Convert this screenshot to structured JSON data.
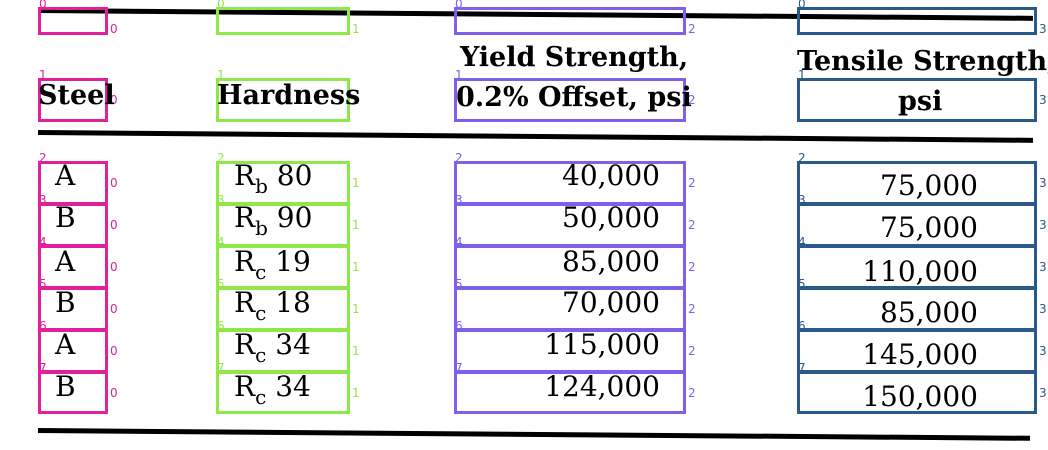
{
  "table": {
    "headers": {
      "steel": "Steel",
      "hardness": "Hardness",
      "yield_line1": "Yield Strength,",
      "yield_line2": "0.2% Offset, psi",
      "tensile_line1": "Tensile Strength,",
      "tensile_line2": "psi"
    },
    "rows": [
      {
        "steel": "A",
        "hardness_scale": "b",
        "hardness_value": "80",
        "yield": "40,000",
        "tensile": "75,000"
      },
      {
        "steel": "B",
        "hardness_scale": "b",
        "hardness_value": "90",
        "yield": "50,000",
        "tensile": "75,000"
      },
      {
        "steel": "A",
        "hardness_scale": "c",
        "hardness_value": "19",
        "yield": "85,000",
        "tensile": "110,000"
      },
      {
        "steel": "B",
        "hardness_scale": "c",
        "hardness_value": "18",
        "yield": "70,000",
        "tensile": "85,000"
      },
      {
        "steel": "A",
        "hardness_scale": "c",
        "hardness_value": "34",
        "yield": "115,000",
        "tensile": "145,000"
      },
      {
        "steel": "B",
        "hardness_scale": "c",
        "hardness_value": "34",
        "yield": "124,000",
        "tensile": "150,000"
      }
    ],
    "hardness_prefix": "R"
  },
  "annotation": {
    "colors": {
      "col0": "#e0209c",
      "col1": "#8fe84a",
      "col2": "#8060e8",
      "col3": "#2a5a8a"
    },
    "column_index_labels": [
      "0",
      "1",
      "2",
      "3"
    ],
    "row_index_labels": [
      "0",
      "1",
      "2",
      "3",
      "4",
      "5",
      "6",
      "7"
    ]
  }
}
